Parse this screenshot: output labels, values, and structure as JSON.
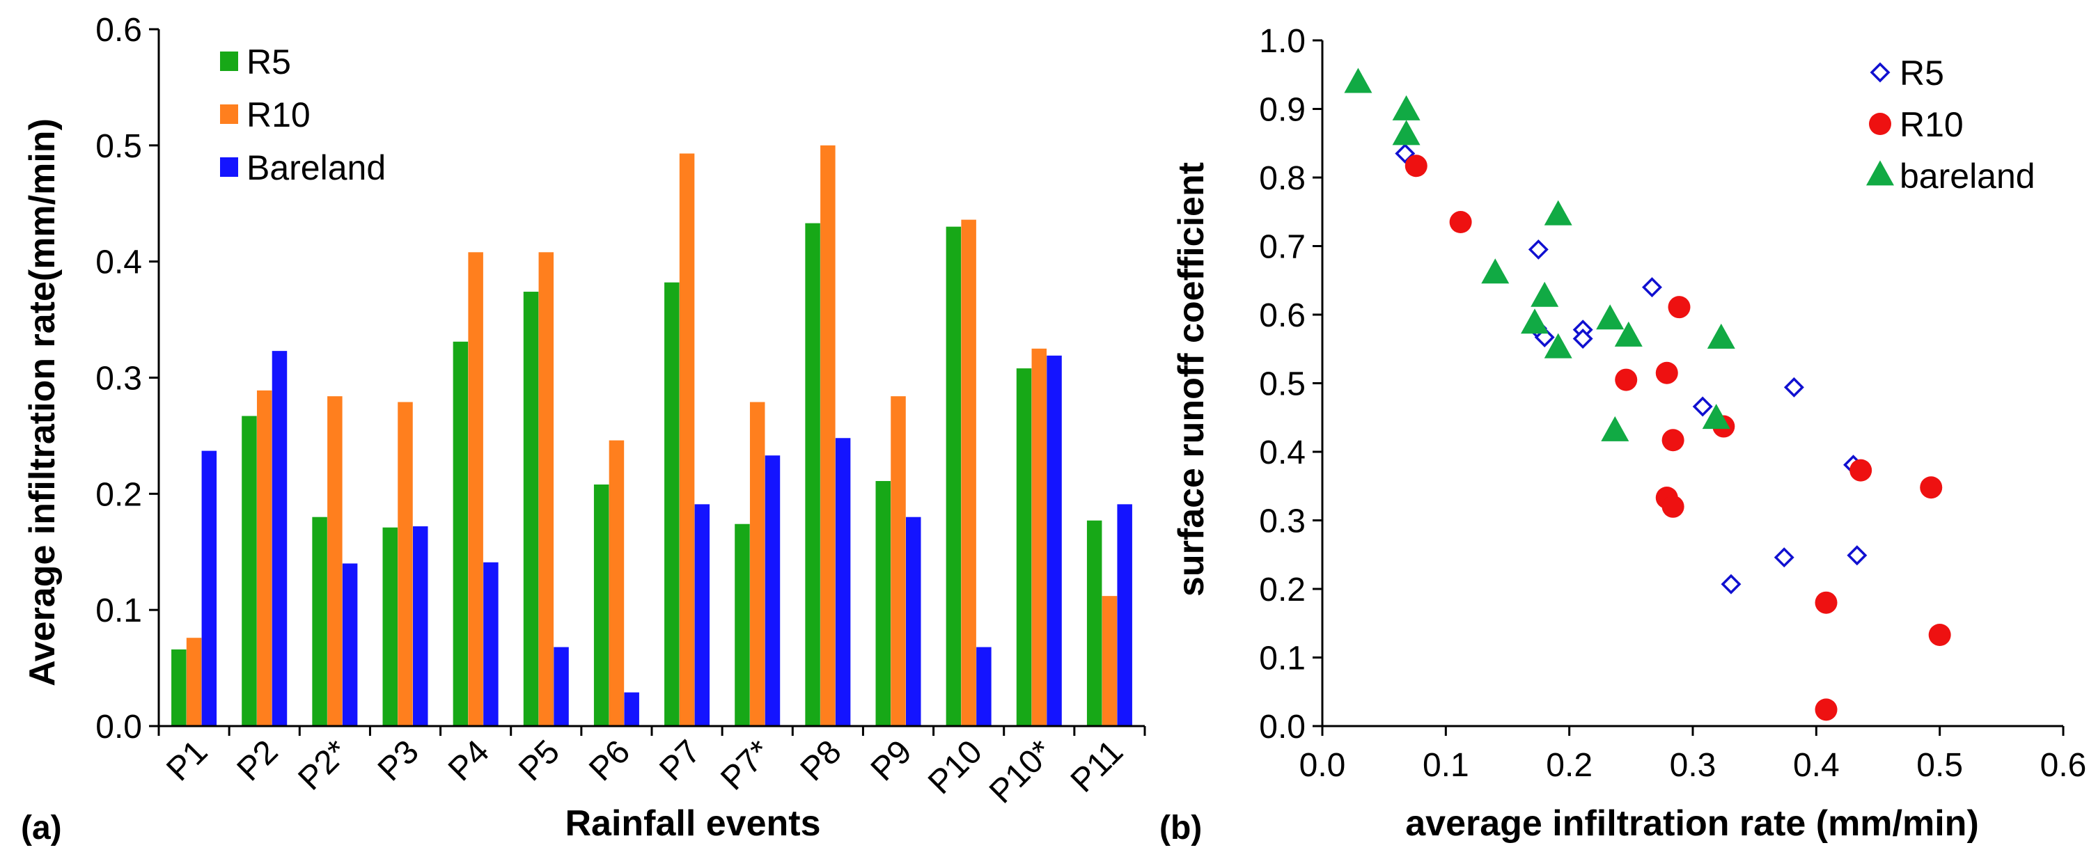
{
  "colors": {
    "R5_bar": "#17a817",
    "R10_bar": "#ff7f1e",
    "Bareland_bar": "#1414ff",
    "R5_marker": "#1010d0",
    "R10_marker": "#ee1111",
    "bareland_marker": "#11aa44",
    "axis": "#000000"
  },
  "chart_data": [
    {
      "id": "a",
      "type": "bar",
      "panel_label": "(a)",
      "title": "",
      "xlabel": "Rainfall events",
      "ylabel": "Average infiltration rate(mm/min)",
      "ylim": [
        0,
        0.6
      ],
      "yticks": [
        "0.0",
        "0.1",
        "0.2",
        "0.3",
        "0.4",
        "0.5",
        "0.6"
      ],
      "grid": false,
      "legend_position": "top-left",
      "categories": [
        "P1",
        "P2",
        "P2*",
        "P3",
        "P4",
        "P5",
        "P6",
        "P7",
        "P7*",
        "P8",
        "P9",
        "P10",
        "P10*",
        "P11"
      ],
      "series": [
        {
          "name": "R5",
          "values": [
            0.066,
            0.267,
            0.18,
            0.171,
            0.331,
            0.374,
            0.208,
            0.382,
            0.174,
            0.433,
            0.211,
            0.43,
            0.308,
            0.177
          ]
        },
        {
          "name": "R10",
          "values": [
            0.076,
            0.289,
            0.284,
            0.279,
            0.408,
            0.408,
            0.246,
            0.493,
            0.279,
            0.5,
            0.284,
            0.436,
            0.325,
            0.112
          ]
        },
        {
          "name": "Bareland",
          "values": [
            0.237,
            0.323,
            0.14,
            0.172,
            0.141,
            0.068,
            0.029,
            0.191,
            0.233,
            0.248,
            0.18,
            0.068,
            0.319,
            0.191
          ]
        }
      ]
    },
    {
      "id": "b",
      "type": "scatter",
      "panel_label": "(b)",
      "title": "",
      "xlabel": "average infiltration rate (mm/min)",
      "ylabel": "surface runoff coefficient",
      "xlim": [
        0,
        0.6
      ],
      "ylim": [
        0,
        1.0
      ],
      "xticks": [
        "0.0",
        "0.1",
        "0.2",
        "0.3",
        "0.4",
        "0.5",
        "0.6"
      ],
      "yticks": [
        "0.0",
        "0.1",
        "0.2",
        "0.3",
        "0.4",
        "0.5",
        "0.6",
        "0.7",
        "0.8",
        "0.9",
        "1.0"
      ],
      "grid": false,
      "legend_position": "top-right",
      "series": [
        {
          "name": "R5",
          "marker": "diamond-open",
          "points": [
            [
              0.067,
              0.835
            ],
            [
              0.175,
              0.695
            ],
            [
              0.174,
              0.58
            ],
            [
              0.18,
              0.567
            ],
            [
              0.211,
              0.578
            ],
            [
              0.211,
              0.565
            ],
            [
              0.267,
              0.64
            ],
            [
              0.308,
              0.466
            ],
            [
              0.382,
              0.494
            ],
            [
              0.331,
              0.207
            ],
            [
              0.374,
              0.246
            ],
            [
              0.43,
              0.381
            ],
            [
              0.433,
              0.249
            ]
          ]
        },
        {
          "name": "R10",
          "marker": "circle",
          "points": [
            [
              0.076,
              0.817
            ],
            [
              0.112,
              0.735
            ],
            [
              0.289,
              0.611
            ],
            [
              0.279,
              0.515
            ],
            [
              0.246,
              0.505
            ],
            [
              0.284,
              0.417
            ],
            [
              0.325,
              0.437
            ],
            [
              0.279,
              0.333
            ],
            [
              0.284,
              0.32
            ],
            [
              0.436,
              0.373
            ],
            [
              0.493,
              0.348
            ],
            [
              0.408,
              0.18
            ],
            [
              0.5,
              0.133
            ],
            [
              0.408,
              0.024
            ]
          ]
        },
        {
          "name": "bareland",
          "marker": "triangle",
          "points": [
            [
              0.029,
              0.938
            ],
            [
              0.068,
              0.898
            ],
            [
              0.068,
              0.862
            ],
            [
              0.191,
              0.745
            ],
            [
              0.14,
              0.66
            ],
            [
              0.18,
              0.626
            ],
            [
              0.172,
              0.587
            ],
            [
              0.191,
              0.551
            ],
            [
              0.233,
              0.593
            ],
            [
              0.248,
              0.568
            ],
            [
              0.323,
              0.565
            ],
            [
              0.237,
              0.43
            ],
            [
              0.319,
              0.448
            ]
          ]
        }
      ]
    }
  ]
}
